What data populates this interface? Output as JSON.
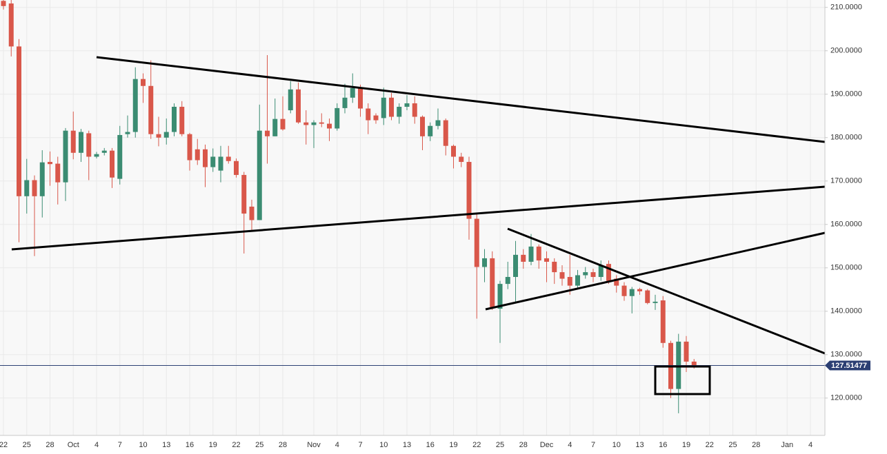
{
  "chart_data": {
    "type": "candlestick",
    "categories": [
      "22",
      null,
      null,
      "25",
      null,
      null,
      "28",
      null,
      null,
      "Oct",
      null,
      null,
      "4",
      null,
      null,
      "7",
      null,
      null,
      "10",
      null,
      null,
      "13",
      null,
      null,
      "16",
      null,
      null,
      "19",
      null,
      null,
      "22",
      null,
      null,
      "25",
      null,
      null,
      "28",
      null,
      null,
      null,
      "Nov",
      null,
      null,
      "4",
      null,
      null,
      "7",
      null,
      null,
      "10",
      null,
      null,
      "13",
      null,
      null,
      "16",
      null,
      null,
      "19",
      null,
      null,
      "22",
      null,
      null,
      "25",
      null,
      null,
      "28",
      null,
      null,
      "Dec",
      null,
      null,
      "4",
      null,
      null,
      "7",
      null,
      null,
      "10",
      null,
      null,
      "13",
      null,
      null,
      "16",
      null,
      null,
      "19",
      null,
      null,
      "22",
      null,
      null,
      "25",
      null,
      null,
      "28",
      null,
      null,
      null,
      "Jan",
      null,
      null,
      "4"
    ],
    "open": [
      211.5,
      210.9,
      201,
      166.5,
      170.2,
      166.5,
      174.4,
      174,
      169.7,
      181.6,
      176.5,
      181,
      175.6,
      176.5,
      177,
      170.5,
      180.8,
      181.3,
      193.5,
      191.9,
      180.8,
      180,
      181.3,
      187.1,
      180.8,
      177.3,
      177.3,
      173.2,
      172.4,
      175.6,
      174.6,
      171.4,
      164.1,
      161,
      181.6,
      180.3,
      184.3,
      186.3,
      191.1,
      183.5,
      182.9,
      183.5,
      183.2,
      182.1,
      186.8,
      189.2,
      191.4,
      186.7,
      185.1,
      184.5,
      189.2,
      184.8,
      187.1,
      187.9,
      184.8,
      180.3,
      182.7,
      184,
      178.1,
      175.6,
      174.4,
      161.3,
      150.2,
      152.2,
      140.6,
      146.3,
      147.9,
      153,
      151.4,
      154.9,
      152.2,
      151.4,
      149,
      147.9,
      145.9,
      148.3,
      149,
      147.9,
      150.9,
      147.5,
      145.9,
      143.5,
      145.1,
      144.8,
      141.9,
      142.5,
      132.7,
      122.1,
      133,
      128.4,
      null,
      null,
      null,
      null,
      null,
      null,
      null,
      null,
      null,
      null,
      null,
      null,
      null,
      null,
      null
    ],
    "high": [
      211.7,
      211.7,
      202.7,
      175.1,
      171.3,
      177.1,
      176.8,
      175.6,
      182.2,
      186,
      182,
      181.6,
      176.7,
      177.6,
      177.6,
      182.7,
      185.1,
      196.2,
      194.8,
      197.8,
      184.8,
      184.4,
      187.9,
      188.4,
      181.1,
      179.7,
      178.4,
      177.5,
      178.1,
      178.1,
      175.2,
      172.1,
      165.7,
      187.6,
      199,
      189,
      189.5,
      193,
      192.7,
      186.3,
      184,
      185.6,
      184.4,
      187.9,
      192.4,
      194.8,
      192.2,
      187.9,
      185.6,
      191.5,
      190.3,
      187.9,
      189.8,
      189.5,
      185.1,
      183.5,
      186.7,
      184.4,
      178.4,
      176.5,
      175.6,
      162.5,
      154.3,
      153.8,
      147,
      151.4,
      156.2,
      154.3,
      157.8,
      155.4,
      153.8,
      152.2,
      150.6,
      153,
      149.5,
      150.2,
      149.8,
      151.7,
      151.7,
      148.3,
      146.7,
      145.6,
      145.4,
      145.1,
      143.8,
      143.5,
      133.2,
      134.8,
      134.3,
      129,
      null,
      null,
      null,
      null,
      null,
      null,
      null,
      null,
      null,
      null,
      null,
      null,
      null,
      null,
      null
    ],
    "low": [
      209.5,
      198.7,
      155.9,
      162.5,
      152.7,
      161.6,
      168.9,
      164.6,
      165.4,
      175,
      174.4,
      170.2,
      175.2,
      175.9,
      168.4,
      169.2,
      180,
      180,
      188,
      179.7,
      178,
      178.4,
      180.3,
      180.3,
      172.4,
      173.7,
      168.6,
      172.1,
      169.7,
      174,
      170.8,
      153.3,
      158.6,
      161,
      174,
      180.3,
      181.6,
      185.6,
      183.2,
      178.4,
      177.6,
      182.4,
      179.2,
      181.6,
      185.6,
      188,
      184.8,
      180.8,
      183.2,
      182.9,
      184,
      183.2,
      186.3,
      183.2,
      177.1,
      179.2,
      181.9,
      175.9,
      172.9,
      173.2,
      156.5,
      138.3,
      146.7,
      140.3,
      132.7,
      145.1,
      141.9,
      149.8,
      150.6,
      149.8,
      146.7,
      146.3,
      145.9,
      143.8,
      145.1,
      147.5,
      146.7,
      147,
      146.3,
      144.3,
      142.4,
      139.5,
      143.8,
      141.6,
      140.3,
      131.6,
      120,
      116.5,
      126,
      126.8,
      null,
      null,
      null,
      null,
      null,
      null,
      null,
      null,
      null,
      null,
      null,
      null,
      null,
      null,
      null
    ],
    "close": [
      210.3,
      201,
      166.5,
      170.2,
      166.5,
      174.3,
      173.9,
      169.7,
      181.6,
      176.5,
      181.3,
      175.6,
      176.2,
      177,
      170.8,
      180.6,
      181.3,
      193.5,
      191.9,
      180.8,
      180,
      181.3,
      187.1,
      180.8,
      174.8,
      174.8,
      173.2,
      175.6,
      175.6,
      174.6,
      171.4,
      162.5,
      161,
      181.6,
      180.3,
      184.3,
      181.9,
      191.1,
      183.5,
      182.9,
      183.5,
      183.2,
      182.1,
      186.8,
      189.2,
      191.4,
      186.7,
      184,
      184,
      189.2,
      184.8,
      187.1,
      187.9,
      184.8,
      180.3,
      182.7,
      184,
      178.1,
      175.6,
      174.4,
      161.3,
      150.2,
      152.2,
      140.8,
      146.3,
      147.9,
      153,
      151.4,
      154.9,
      151.7,
      151.4,
      149,
      147.5,
      145.9,
      148.3,
      149,
      147.9,
      150.6,
      147,
      145.9,
      143.5,
      145.1,
      144.6,
      141.9,
      142.2,
      132.7,
      122.1,
      133,
      128.4,
      127.51477,
      null,
      null,
      null,
      null,
      null,
      null,
      null,
      null,
      null,
      null,
      null,
      null,
      null,
      null,
      null
    ],
    "up_color": "#3b8c72",
    "down_color": "#d9574a",
    "ylim": [
      111.4,
      211.7
    ],
    "yticks": [
      {
        "value": 120,
        "label": "120.0000"
      },
      {
        "value": 130,
        "label": "130.0000"
      },
      {
        "value": 140,
        "label": "140.0000"
      },
      {
        "value": 150,
        "label": "150.0000"
      },
      {
        "value": 160,
        "label": "160.0000"
      },
      {
        "value": 170,
        "label": "170.0000"
      },
      {
        "value": 180,
        "label": "180.0000"
      },
      {
        "value": 190,
        "label": "190.0000"
      },
      {
        "value": 200,
        "label": "200.0000"
      },
      {
        "value": 210,
        "label": "210.0000"
      }
    ],
    "grid": true
  }
}
